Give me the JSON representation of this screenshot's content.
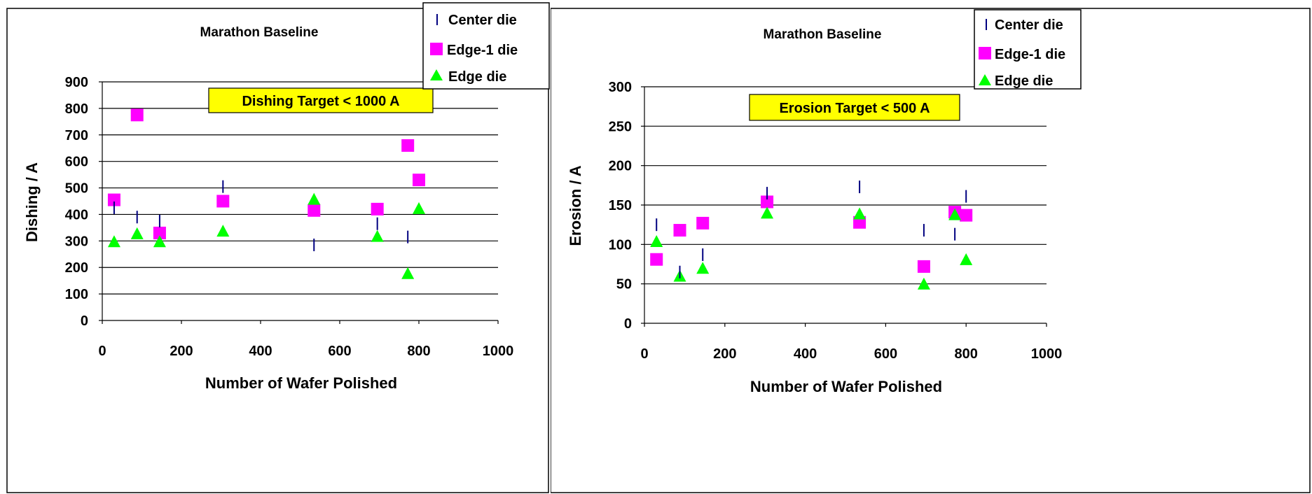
{
  "chart_data": [
    {
      "type": "scatter",
      "title": "Marathon Baseline",
      "xlabel": "Number of Wafer Polished",
      "ylabel": "Dishing / A",
      "annotation": "Dishing Target < 1000 A",
      "xlim": [
        0,
        1000
      ],
      "ylim": [
        0,
        900
      ],
      "xticks": [
        0,
        200,
        400,
        600,
        800,
        1000
      ],
      "yticks": [
        0,
        100,
        200,
        300,
        400,
        500,
        600,
        700,
        800,
        900
      ],
      "grid": "horizontal",
      "legend_position": "top-right",
      "series": [
        {
          "name": "Center die",
          "marker": "dash",
          "color": "#000080",
          "x": [
            30,
            88,
            145,
            305,
            535,
            695,
            772
          ],
          "y": [
            425,
            390,
            375,
            505,
            285,
            365,
            315
          ]
        },
        {
          "name": "Edge-1 die",
          "marker": "square",
          "color": "#ff00ff",
          "x": [
            30,
            88,
            145,
            305,
            535,
            695,
            772,
            800
          ],
          "y": [
            455,
            775,
            330,
            450,
            415,
            420,
            660,
            530
          ]
        },
        {
          "name": "Edge die",
          "marker": "triangle",
          "color": "#00ff00",
          "x": [
            30,
            88,
            145,
            305,
            535,
            695,
            772,
            800
          ],
          "y": [
            295,
            325,
            295,
            335,
            455,
            315,
            175,
            420
          ]
        }
      ]
    },
    {
      "type": "scatter",
      "title": "Marathon Baseline",
      "xlabel": "Number of Wafer Polished",
      "ylabel": "Erosion / A",
      "annotation": "Erosion Target < 500 A",
      "xlim": [
        0,
        1000
      ],
      "ylim": [
        0,
        300
      ],
      "xticks": [
        0,
        200,
        400,
        600,
        800,
        1000
      ],
      "yticks": [
        0,
        50,
        100,
        150,
        200,
        250,
        300
      ],
      "grid": "horizontal",
      "legend_position": "top-right",
      "series": [
        {
          "name": "Center die",
          "marker": "dash",
          "color": "#000080",
          "x": [
            30,
            88,
            145,
            305,
            535,
            695,
            772,
            800
          ],
          "y": [
            125,
            65,
            87,
            165,
            173,
            118,
            113,
            161
          ]
        },
        {
          "name": "Edge-1 die",
          "marker": "square",
          "color": "#ff00ff",
          "x": [
            30,
            88,
            145,
            305,
            535,
            695,
            772,
            800
          ],
          "y": [
            81,
            118,
            127,
            154,
            128,
            72,
            141,
            137
          ]
        },
        {
          "name": "Edge die",
          "marker": "triangle",
          "color": "#00ff00",
          "x": [
            30,
            88,
            145,
            305,
            535,
            695,
            772,
            800
          ],
          "y": [
            103,
            59,
            69,
            139,
            138,
            49,
            137,
            80
          ]
        }
      ]
    }
  ]
}
